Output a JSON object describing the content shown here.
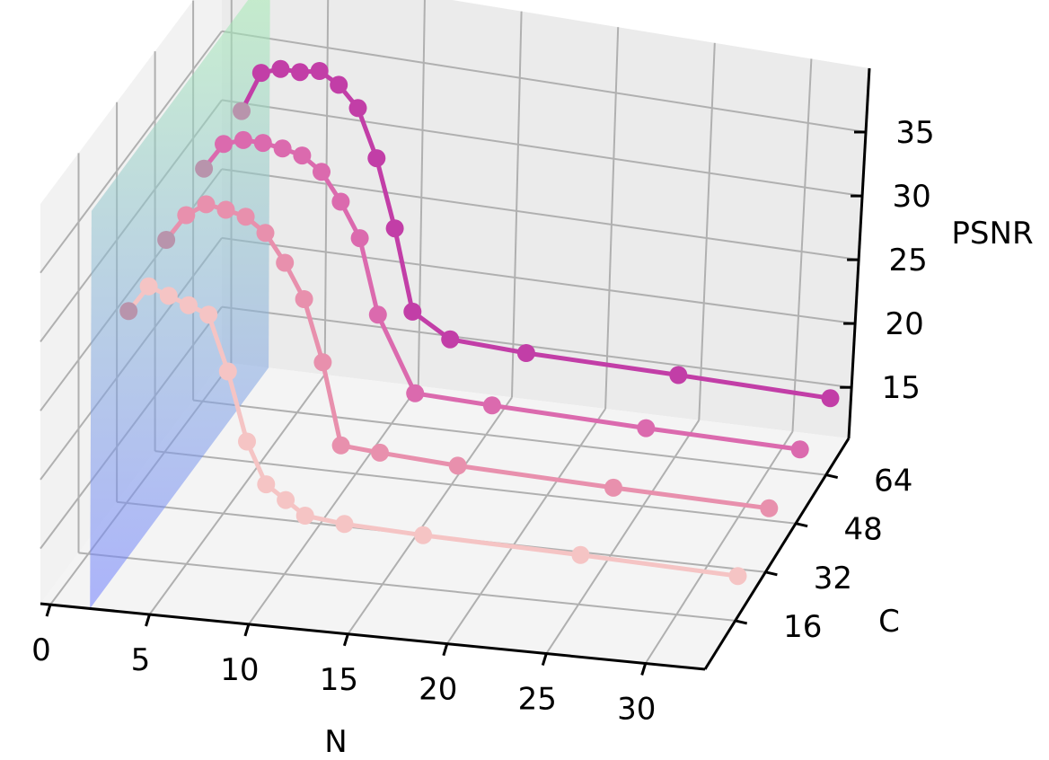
{
  "chart_data": {
    "type": "line3d",
    "xlabel": "N",
    "ylabel": "C",
    "zlabel": "PSNR",
    "xlim": [
      -0.5,
      33
    ],
    "ylim": [
      0,
      76
    ],
    "zlim": [
      11,
      40
    ],
    "x_ticks": [
      "0",
      "5",
      "10",
      "15",
      "20",
      "25",
      "30"
    ],
    "y_ticks": [
      "16",
      "32",
      "48",
      "64"
    ],
    "z_ticks": [
      "15",
      "20",
      "25",
      "30",
      "35"
    ],
    "grid": true,
    "surface": {
      "x": 2,
      "bottom_color": "#6f7dff",
      "top_color": "#a8f0b0"
    },
    "series": [
      {
        "c": 16,
        "color": "#f5c4c4",
        "x": [
          2,
          3,
          4,
          5,
          6,
          7,
          8,
          9,
          10,
          11,
          13,
          17,
          25,
          33
        ],
        "y": [
          29,
          31,
          30.5,
          30,
          29.5,
          25.5,
          20.5,
          17.5,
          16.5,
          15.5,
          15.2,
          15,
          14.8,
          14.5
        ]
      },
      {
        "c": 32,
        "color": "#e890ad",
        "x": [
          2,
          3,
          4,
          5,
          6,
          7,
          8,
          9,
          10,
          11,
          13,
          17,
          25,
          33
        ],
        "y": [
          30.5,
          32.5,
          33.5,
          33.3,
          33,
          32,
          30,
          27.5,
          23,
          17,
          16.8,
          16.5,
          16.2,
          16
        ]
      },
      {
        "c": 48,
        "color": "#db6aae",
        "x": [
          2,
          3,
          4,
          5,
          6,
          7,
          8,
          9,
          10,
          11,
          13,
          17,
          25,
          33
        ],
        "y": [
          32,
          34,
          34.5,
          34.5,
          34.3,
          34,
          33,
          31,
          28.5,
          23,
          17.5,
          17.3,
          17,
          16.8
        ]
      },
      {
        "c": 64,
        "color": "#c23ea7",
        "x": [
          2,
          3,
          4,
          5,
          6,
          7,
          8,
          9,
          10,
          11,
          13,
          17,
          25,
          33
        ],
        "y": [
          32.5,
          35.5,
          36,
          36,
          36.3,
          35.5,
          34,
          30.5,
          25.5,
          19.5,
          17.8,
          17.5,
          17.3,
          17
        ]
      }
    ]
  }
}
